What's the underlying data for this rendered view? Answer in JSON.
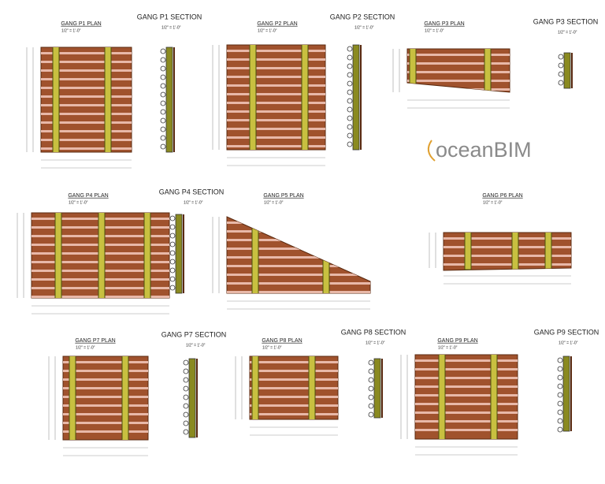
{
  "plans": [
    {
      "title": "GANG P1 PLAN",
      "scale": "1/2\" = 1'-0\""
    },
    {
      "title": "GANG P2 PLAN",
      "scale": "1/2\" = 1'-0\""
    },
    {
      "title": "GANG P3 PLAN",
      "scale": "1/2\" = 1'-0\""
    },
    {
      "title": "GANG P4 PLAN",
      "scale": "1/2\" = 1'-0\""
    },
    {
      "title": "GANG P5 PLAN",
      "scale": "1/2\" = 1'-0\""
    },
    {
      "title": "GANG P6 PLAN",
      "scale": "1/2\" = 1'-0\""
    },
    {
      "title": "GANG P7 PLAN",
      "scale": "1/2\" = 1'-0\""
    },
    {
      "title": "GANG P8 PLAN",
      "scale": "1/2\" = 1'-0\""
    },
    {
      "title": "GANG P9 PLAN",
      "scale": "1/2\" = 1'-0\""
    }
  ],
  "sections": [
    {
      "title": "GANG P1 SECTION",
      "scale": "1/2\" = 1'-0\""
    },
    {
      "title": "GANG P2 SECTION",
      "scale": "1/2\" = 1'-0\""
    },
    {
      "title": "GANG P3 SECTION",
      "scale": "1/2\" = 1'-0\""
    },
    {
      "title": "GANG P4 SECTION",
      "scale": "1/2\" = 1'-0\""
    },
    {
      "title": "GANG P7 SECTION",
      "scale": "1/2\" = 1'-0\""
    },
    {
      "title": "GANG P8 SECTION",
      "scale": "1/2\" = 1'-0\""
    },
    {
      "title": "GANG P9 SECTION",
      "scale": "1/2\" = 1'-0\""
    }
  ],
  "logo": "oceanBIM"
}
